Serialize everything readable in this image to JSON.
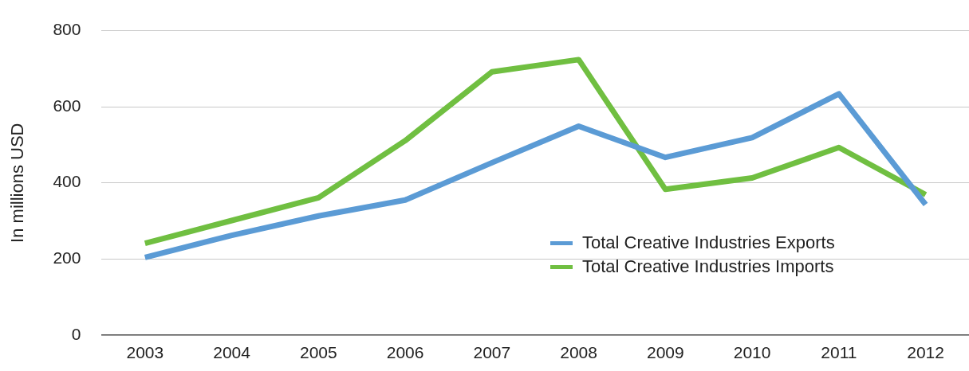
{
  "chart_data": {
    "type": "line",
    "ylabel": "In millions USD",
    "categories": [
      "2003",
      "2004",
      "2005",
      "2006",
      "2007",
      "2008",
      "2009",
      "2010",
      "2011",
      "2012"
    ],
    "series": [
      {
        "name": "Total Creative Industries Exports",
        "color": "#5b9bd5",
        "values": [
          204,
          262,
          313,
          355,
          453,
          549,
          467,
          519,
          634,
          343
        ]
      },
      {
        "name": "Total Creative Industries Imports",
        "color": "#70bf41",
        "values": [
          241,
          301,
          361,
          511,
          692,
          724,
          383,
          413,
          493,
          369
        ]
      }
    ],
    "ylim": [
      0,
      800
    ],
    "yticks": [
      0,
      200,
      400,
      600,
      800
    ],
    "grid": "y",
    "legend": "bottom right",
    "marker": "none",
    "line_style": "solid"
  }
}
